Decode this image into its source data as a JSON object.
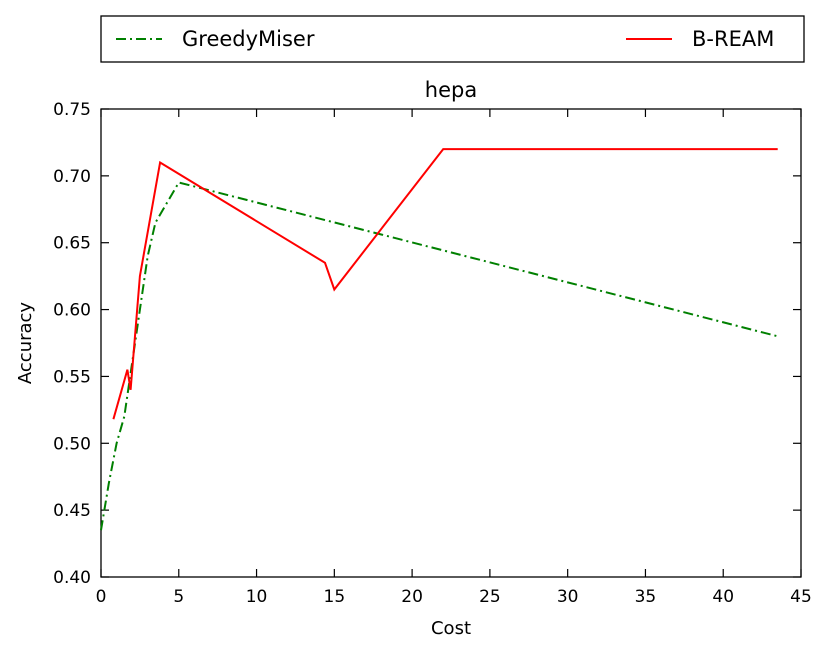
{
  "chart_data": {
    "type": "line",
    "title": "hepa",
    "xlabel": "Cost",
    "ylabel": "Accuracy",
    "xlim": [
      0,
      45
    ],
    "ylim": [
      0.4,
      0.75
    ],
    "xticks": [
      "0",
      "5",
      "10",
      "15",
      "20",
      "25",
      "30",
      "35",
      "40",
      "45"
    ],
    "yticks": [
      "0.40",
      "0.45",
      "0.50",
      "0.55",
      "0.60",
      "0.65",
      "0.70",
      "0.75"
    ],
    "grid": false,
    "legend_position": "top, above plot",
    "series": [
      {
        "name": "GreedyMiser",
        "color": "#008000",
        "style": "dash-dot",
        "x": [
          0.0,
          0.5,
          1.0,
          1.5,
          2.0,
          2.5,
          3.0,
          3.5,
          4.0,
          5.0,
          43.5
        ],
        "y": [
          0.435,
          0.47,
          0.5,
          0.52,
          0.56,
          0.6,
          0.64,
          0.665,
          0.675,
          0.695,
          0.58
        ]
      },
      {
        "name": "B-REAM",
        "color": "#ff0000",
        "style": "solid",
        "x": [
          0.8,
          1.7,
          1.9,
          2.5,
          3.8,
          14.4,
          15.0,
          22.0,
          43.5
        ],
        "y": [
          0.518,
          0.555,
          0.54,
          0.625,
          0.71,
          0.635,
          0.615,
          0.72,
          0.72
        ]
      }
    ]
  }
}
